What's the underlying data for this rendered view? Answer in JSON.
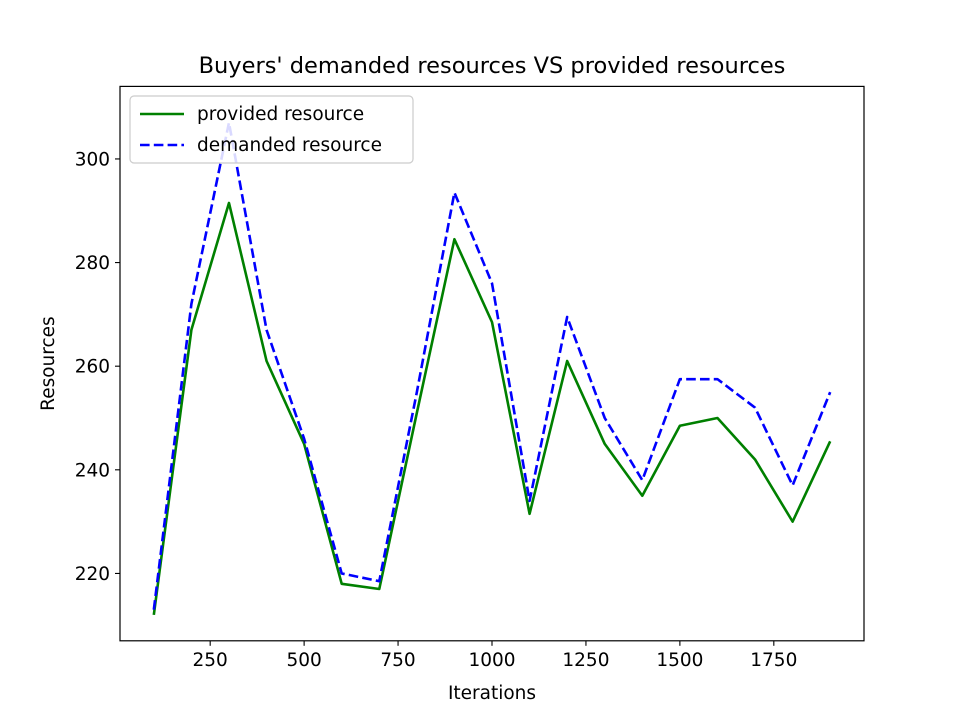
{
  "chart_data": {
    "type": "line",
    "title": "Buyers' demanded resources VS provided resources",
    "xlabel": "Iterations",
    "ylabel": "Resources",
    "xlim": [
      10,
      1990
    ],
    "ylim": [
      207,
      314
    ],
    "x_ticks": [
      250,
      500,
      750,
      1000,
      1250,
      1500,
      1750
    ],
    "y_ticks": [
      220,
      240,
      260,
      280,
      300
    ],
    "grid": false,
    "legend_position": "top-left",
    "x": [
      100,
      200,
      300,
      400,
      500,
      600,
      700,
      800,
      900,
      1000,
      1100,
      1200,
      1300,
      1400,
      1500,
      1600,
      1700,
      1800,
      1900
    ],
    "series": [
      {
        "name": "provided resource",
        "color": "#008000",
        "style": "solid",
        "values": [
          212,
          267,
          291.5,
          261,
          245,
          218,
          217,
          251,
          284.5,
          268.5,
          231.5,
          261,
          245,
          235,
          248.5,
          250,
          242,
          230,
          245.5
        ]
      },
      {
        "name": "demanded resource",
        "color": "#0000ff",
        "style": "dashed",
        "values": [
          213,
          272,
          307,
          267,
          246,
          220,
          218.5,
          255,
          293.5,
          276,
          234,
          269.5,
          250,
          238,
          257.5,
          257.5,
          252,
          237,
          255
        ]
      }
    ]
  }
}
